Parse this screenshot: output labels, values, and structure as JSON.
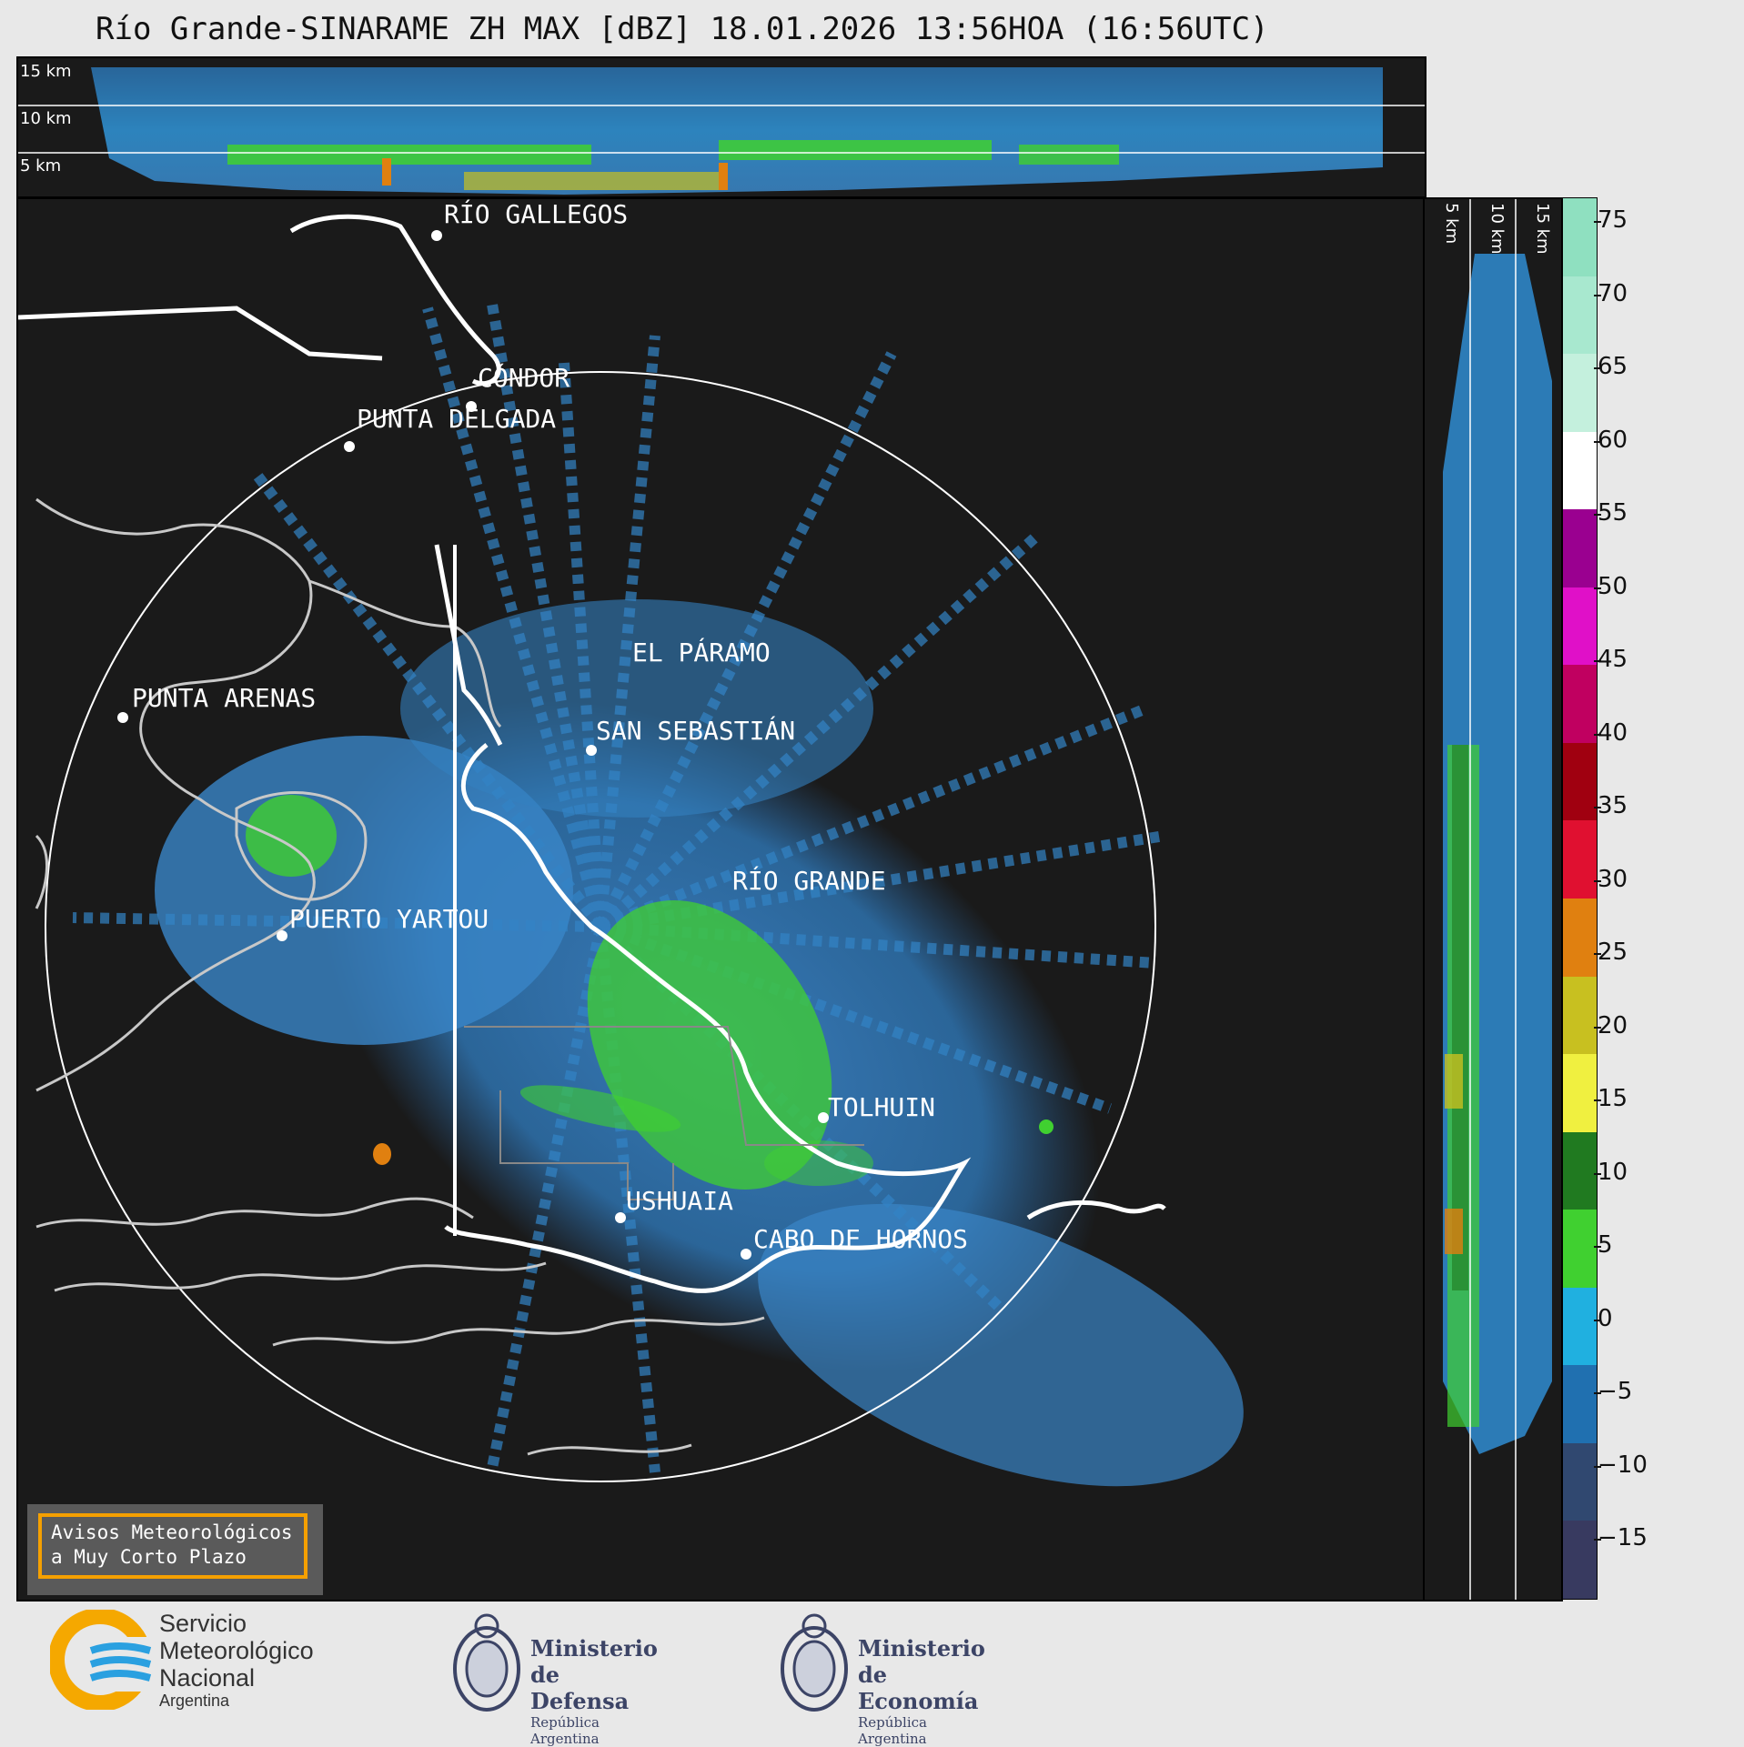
{
  "title": "Río Grande-SINARAME ZH MAX [dBZ] 18.01.2026 13:56HOA (16:56UTC)",
  "height_labels": [
    "15 km",
    "10 km",
    "5 km"
  ],
  "cities": [
    {
      "name": "RÍO GALLEGOS"
    },
    {
      "name": "CÓNDOR"
    },
    {
      "name": "PUNTA DELGADA"
    },
    {
      "name": "EL PÁRAMO"
    },
    {
      "name": "PUNTA ARENAS"
    },
    {
      "name": "SAN SEBASTIÁN"
    },
    {
      "name": "RÍO GRANDE"
    },
    {
      "name": "PUERTO YARTOU"
    },
    {
      "name": "TOLHUIN"
    },
    {
      "name": "USHUAIA"
    },
    {
      "name": "CABO DE HORNOS"
    }
  ],
  "colorbar": {
    "ticks": [
      "75",
      "70",
      "65",
      "60",
      "55",
      "50",
      "45",
      "40",
      "35",
      "30",
      "25",
      "20",
      "15",
      "10",
      "5",
      "0",
      "−5",
      "−10",
      "−15"
    ],
    "colors": [
      "#8fe0c0",
      "#a8e8cf",
      "#c4f0dd",
      "#ffffff",
      "#9a0090",
      "#e010c8",
      "#c00060",
      "#a00010",
      "#e01030",
      "#e08010",
      "#c8c020",
      "#f0f040",
      "#207a20",
      "#40d030",
      "#20b0e0",
      "#2070b0",
      "#304870",
      "#383a60"
    ]
  },
  "warning_box": {
    "line1": "Avisos Meteorológicos",
    "line2": "a Muy Corto Plazo"
  },
  "logos": {
    "smn": {
      "line1": "Servicio",
      "line2": "Meteorológico",
      "line3": "Nacional",
      "line4": "Argentina"
    },
    "defensa": {
      "line1": "Ministerio",
      "line2": "de Defensa",
      "line3": "República Argentina"
    },
    "economia": {
      "line1": "Ministerio",
      "line2": "de Economía",
      "line3": "República Argentina"
    }
  }
}
